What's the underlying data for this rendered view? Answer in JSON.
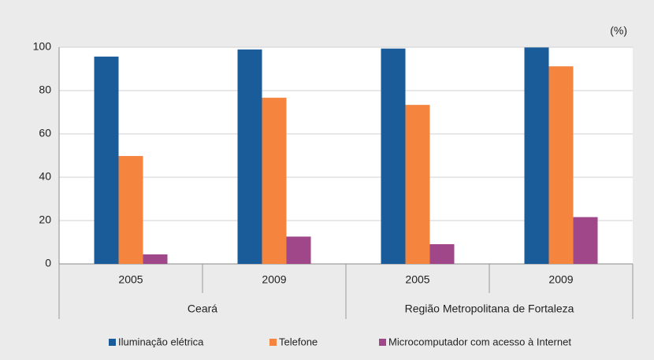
{
  "chart_data": {
    "type": "bar",
    "y_unit": "(%)",
    "categories": [
      "2005",
      "2009",
      "2005",
      "2009"
    ],
    "groups": [
      "Ceará",
      "Região Metropolitana de Fortaleza"
    ],
    "series": [
      {
        "name": "Iluminação elétrica",
        "color": "#1a5c9a",
        "values": [
          95.7,
          99.0,
          99.4,
          99.9
        ]
      },
      {
        "name": "Telefone",
        "color": "#f5843f",
        "values": [
          49.8,
          76.7,
          73.4,
          91.2
        ]
      },
      {
        "name": "Microcomputador com acesso à Internet",
        "color": "#a0478a",
        "values": [
          4.4,
          12.6,
          9.1,
          21.6
        ]
      }
    ],
    "ylim": [
      0,
      100
    ],
    "yticks": [
      0,
      20,
      40,
      60,
      80,
      100
    ],
    "grid": true,
    "legend": "bottom"
  }
}
